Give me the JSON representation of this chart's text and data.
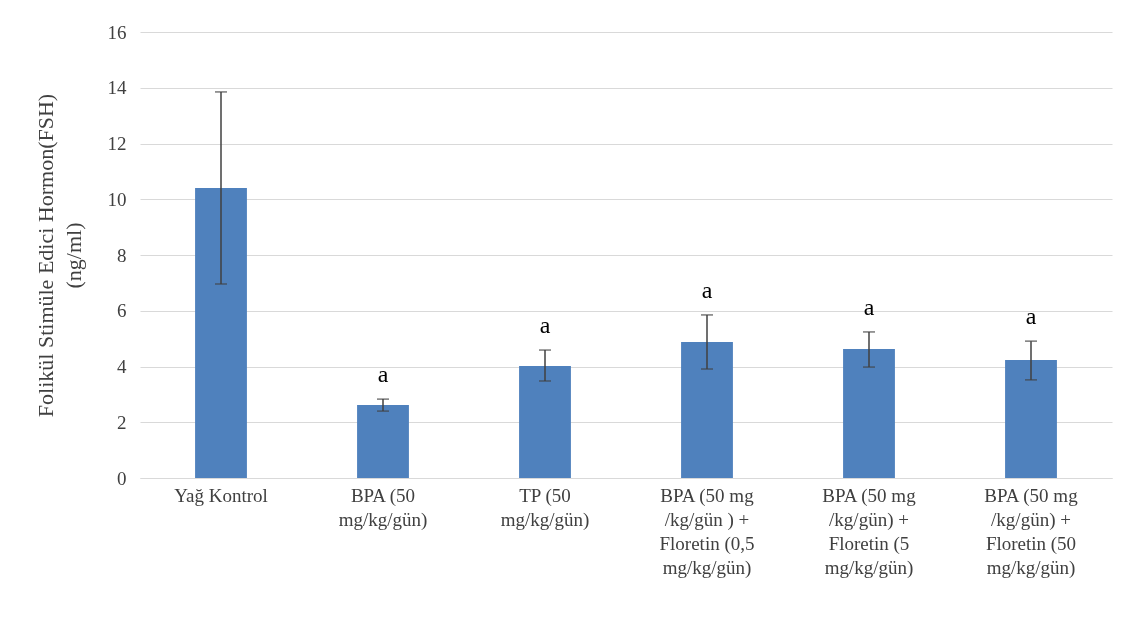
{
  "chart_data": {
    "type": "bar",
    "ylabel": "Folikül Stimüle Edici Hormon(FSH)\n(ng/ml)",
    "categories": [
      "Yağ Kontrol",
      "BPA (50\nmg/kg/gün)",
      "TP (50\nmg/kg/gün)",
      "BPA (50 mg\n/kg/gün ) +\nFloretin (0,5\nmg/kg/gün)",
      "BPA (50 mg\n/kg/gün) +\nFloretin (5\nmg/kg/gün)",
      "BPA (50 mg\n/kg/gün) +\nFloretin (50\nmg/kg/gün)"
    ],
    "values": [
      10.4,
      2.62,
      4.02,
      4.88,
      4.63,
      4.23
    ],
    "errors": [
      [
        6.96,
        13.85
      ],
      [
        2.4,
        2.83
      ],
      [
        3.48,
        4.59
      ],
      [
        3.91,
        5.85
      ],
      [
        3.98,
        5.24
      ],
      [
        3.52,
        4.91
      ]
    ],
    "color": "#4f81bd",
    "ylim": [
      0,
      16
    ],
    "yticks": [
      0,
      2,
      4,
      6,
      8,
      10,
      12,
      14,
      16
    ],
    "grid": "y",
    "annotations": [
      "a",
      "a",
      "a",
      "a",
      "a"
    ]
  }
}
